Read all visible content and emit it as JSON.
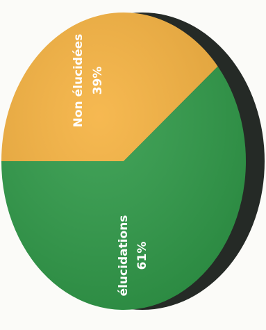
{
  "chart_data": {
    "type": "pie",
    "title": "",
    "slices": [
      {
        "label": "Non élucidées",
        "value": 39,
        "display": "39%",
        "color": "#f5b13e"
      },
      {
        "label": "élucidations",
        "value": 61,
        "display": "61%",
        "color": "#2f9a48"
      }
    ],
    "shadow_color": "#252a26"
  }
}
